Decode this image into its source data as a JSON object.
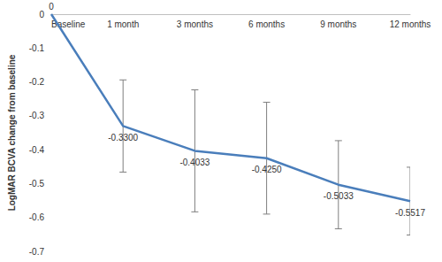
{
  "chart_data": {
    "type": "line",
    "categories": [
      "Baseline",
      "1 month",
      "3 months",
      "6 months",
      "9 months",
      "12 months"
    ],
    "values": [
      0,
      -0.33,
      -0.4033,
      -0.425,
      -0.5033,
      -0.5517
    ],
    "value_labels": [
      "0",
      "-0.3300",
      "-0.4033",
      "-0.4250",
      "-0.5033",
      "-0.5517"
    ],
    "errors": [
      null,
      0.136,
      0.18,
      0.165,
      0.13,
      0.1
    ],
    "color": "#4a7ebb",
    "ylabel": "LogMAR BCVA change from baseline",
    "ylim": [
      -0.7,
      0
    ],
    "yticks": [
      -0.7,
      -0.6,
      -0.5,
      -0.4,
      -0.3,
      -0.2,
      -0.1,
      0
    ],
    "grid": false,
    "data_labels": true
  }
}
